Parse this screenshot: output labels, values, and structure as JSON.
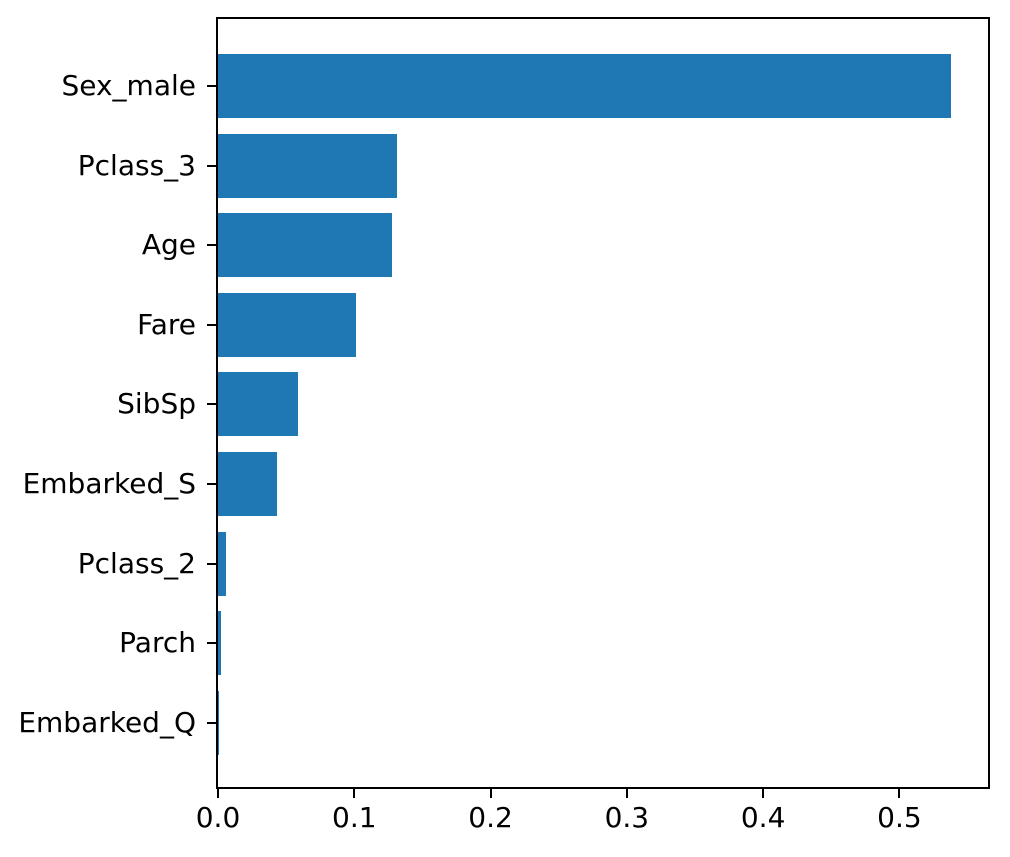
{
  "chart_data": {
    "type": "bar",
    "orientation": "horizontal",
    "title": "",
    "xlabel": "",
    "ylabel": "",
    "categories": [
      "Sex_male",
      "Pclass_3",
      "Age",
      "Fare",
      "SibSp",
      "Embarked_S",
      "Pclass_2",
      "Parch",
      "Embarked_Q"
    ],
    "values": [
      0.538,
      0.131,
      0.128,
      0.101,
      0.059,
      0.043,
      0.006,
      0.002,
      0.0003
    ],
    "x_ticks": [
      0.0,
      0.1,
      0.2,
      0.3,
      0.4,
      0.5
    ],
    "x_tick_labels": [
      "0.0",
      "0.1",
      "0.2",
      "0.3",
      "0.4",
      "0.5"
    ],
    "xlim": [
      0,
      0.565
    ],
    "bar_color": "#1f77b4",
    "frame_color": "#000000",
    "grid": false,
    "legend": "none"
  }
}
